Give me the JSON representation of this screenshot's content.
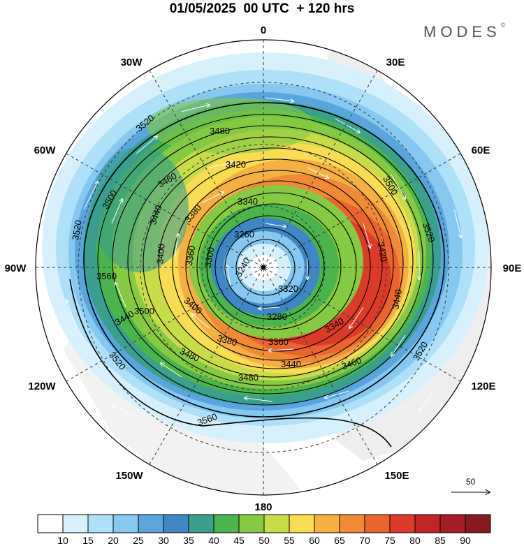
{
  "header": {
    "title": "01/05/2025  00 UTC  + 120 hrs",
    "brand": "MODES",
    "brand_mark": "©"
  },
  "map": {
    "projection": "polar stereographic (north pole centered)",
    "longitude_labels": {
      "lon_0": "0",
      "lon_30e": "30E",
      "lon_60e": "60E",
      "lon_90e": "90E",
      "lon_120e": "120E",
      "lon_150e": "150E",
      "lon_180": "180",
      "lon_150w": "150W",
      "lon_120w": "120W",
      "lon_90w": "90W",
      "lon_60w": "60W",
      "lon_30w": "30W"
    },
    "contour_labels": {
      "c1": "3520",
      "c2": "3480",
      "c3": "3420",
      "c4": "3460",
      "c5": "3500",
      "c6": "3520",
      "c7": "3560",
      "c8": "3500",
      "c9": "3440",
      "c10": "3400",
      "c11": "3380",
      "c12": "3340",
      "c13": "3260",
      "c14": "3360",
      "c15": "3300",
      "c16": "3420",
      "c17": "3500",
      "c18": "3440",
      "c19": "3280",
      "c20": "3340",
      "c21": "3400",
      "c22": "3380",
      "c23": "3360",
      "c24": "3440",
      "c25": "3460",
      "c26": "3480",
      "c27": "3520",
      "c28": "3520",
      "c29": "3480",
      "c30": "3440",
      "c31": "3520",
      "c32": "3560",
      "c33": "3240",
      "c34": "3320"
    },
    "vector_reference": "50"
  },
  "colorbar": {
    "labels": [
      "10",
      "15",
      "20",
      "25",
      "30",
      "35",
      "40",
      "45",
      "50",
      "55",
      "60",
      "65",
      "70",
      "75",
      "80",
      "85",
      "90"
    ],
    "colors": [
      "#ffffff",
      "#d6f1fc",
      "#aee0f7",
      "#86c8ef",
      "#5aa6dc",
      "#3f87c4",
      "#3a9f8c",
      "#4bb44c",
      "#86c943",
      "#c8dc48",
      "#f8dc51",
      "#f5b042",
      "#f08a35",
      "#ea642d",
      "#dc3b2a",
      "#c22427",
      "#a51d25",
      "#861a1f"
    ]
  }
}
